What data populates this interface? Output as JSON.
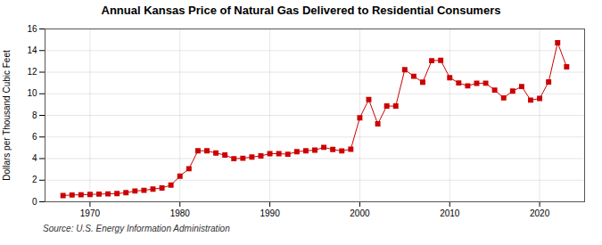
{
  "chart_data": {
    "type": "line",
    "title": "Annual Kansas Price of Natural Gas Delivered to Residential Consumers",
    "ylabel": "Dollars per Thousand Cubic Feet",
    "source": "Source: U.S. Energy Information Administration",
    "x": [
      1967,
      1968,
      1969,
      1970,
      1971,
      1972,
      1973,
      1974,
      1975,
      1976,
      1977,
      1978,
      1979,
      1980,
      1981,
      1982,
      1983,
      1984,
      1985,
      1986,
      1987,
      1988,
      1989,
      1990,
      1991,
      1992,
      1993,
      1994,
      1995,
      1996,
      1997,
      1998,
      1999,
      2000,
      2001,
      2002,
      2003,
      2004,
      2005,
      2006,
      2007,
      2008,
      2009,
      2010,
      2011,
      2012,
      2013,
      2014,
      2015,
      2016,
      2017,
      2018,
      2019,
      2020,
      2021,
      2022,
      2023
    ],
    "values": [
      0.58,
      0.63,
      0.65,
      0.68,
      0.71,
      0.73,
      0.76,
      0.84,
      1.0,
      1.06,
      1.18,
      1.28,
      1.55,
      2.37,
      3.06,
      4.72,
      4.72,
      4.51,
      4.33,
      3.99,
      4.03,
      4.14,
      4.25,
      4.45,
      4.46,
      4.4,
      4.64,
      4.72,
      4.78,
      5.04,
      4.84,
      4.71,
      4.87,
      7.78,
      9.46,
      7.21,
      8.86,
      8.86,
      12.23,
      11.62,
      11.07,
      13.06,
      13.1,
      11.49,
      11.0,
      10.73,
      10.97,
      10.98,
      10.34,
      9.62,
      10.25,
      10.67,
      9.41,
      9.56,
      11.1,
      14.72,
      12.5
    ],
    "color": "#cc0000",
    "marker": "square",
    "line_style": "solid",
    "grid": true,
    "xlim": [
      1965,
      2025
    ],
    "xticks": [
      1970,
      1980,
      1990,
      2000,
      2010,
      2020
    ],
    "ylim": [
      0,
      16
    ],
    "yticks": [
      0,
      2,
      4,
      6,
      8,
      10,
      12,
      14,
      16
    ]
  }
}
